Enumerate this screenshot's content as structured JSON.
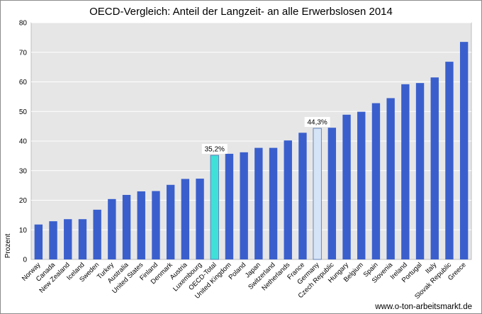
{
  "chart_data": {
    "type": "bar",
    "title": "OECD-Vergleich: Anteil der Langzeit- an alle Erwerbslosen 2014",
    "ylabel": "Prozent",
    "xlabel": "",
    "ylim": [
      0,
      80
    ],
    "yticks": [
      0,
      10,
      20,
      30,
      40,
      50,
      60,
      70,
      80
    ],
    "grid": true,
    "categories": [
      "Norway",
      "Canada",
      "New Zealand",
      "Iceland",
      "Sweden",
      "Turkey",
      "Australia",
      "United States",
      "Finland",
      "Denmark",
      "Austria",
      "Luxembourg",
      "OECD-Total",
      "United Kingdom",
      "Poland",
      "Japan",
      "Switzerland",
      "Netherlands",
      "France",
      "Germany",
      "Czech Republic",
      "Hungary",
      "Belgium",
      "Spain",
      "Slovenia",
      "Ireland",
      "Portugal",
      "Italy",
      "Slovak Republic",
      "Greece"
    ],
    "values": [
      11.8,
      12.9,
      13.6,
      13.6,
      16.8,
      20.4,
      21.8,
      23.0,
      23.1,
      25.2,
      27.2,
      27.3,
      35.2,
      35.7,
      36.2,
      37.7,
      37.7,
      40.2,
      42.8,
      44.3,
      44.5,
      48.9,
      49.9,
      52.8,
      54.5,
      59.2,
      59.6,
      61.5,
      66.8,
      73.5
    ],
    "colors": {
      "default": "#3a5fcd",
      "OECD-Total": "#3fe0d8",
      "Germany": "#d6e4f7"
    },
    "data_labels": [
      {
        "category": "OECD-Total",
        "text": "35,2%"
      },
      {
        "category": "Germany",
        "text": "44,3%"
      }
    ]
  },
  "credit": "www.o-ton-arbeitsmarkt.de"
}
